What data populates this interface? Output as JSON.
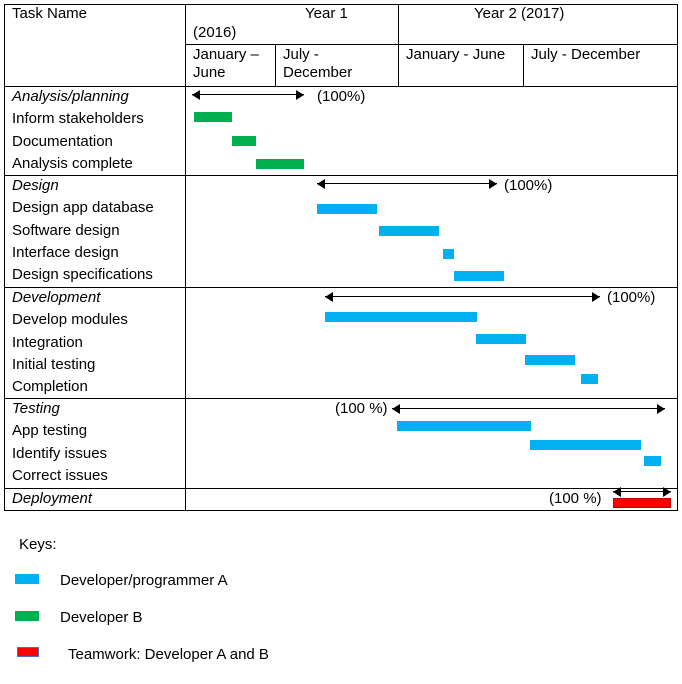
{
  "header": {
    "task_name": "Task Name",
    "year1": "Year 1",
    "year1_sub": "(2016)",
    "year2": "Year 2 (2017)",
    "y1_h1": "January –",
    "y1_h1b": "June",
    "y1_h2": "July -",
    "y1_h2b": "December",
    "y2_h1": "January - June",
    "y2_h2": "July - December"
  },
  "groups": [
    {
      "title": "Analysis/planning",
      "percent": "(100%)",
      "tasks": [
        "Inform stakeholders",
        "Documentation",
        "Analysis complete"
      ]
    },
    {
      "title": "Design",
      "percent": "(100%)",
      "tasks": [
        "Design app database",
        "Software design",
        "Interface design",
        "Design specifications"
      ]
    },
    {
      "title": "Development",
      "percent": "(100%)",
      "tasks": [
        "Develop modules",
        "Integration",
        "Initial testing",
        "Completion"
      ]
    },
    {
      "title": "Testing",
      "percent": "(100 %)",
      "tasks": [
        "App testing",
        "Identify issues",
        "Correct issues"
      ]
    },
    {
      "title": "Deployment",
      "percent": "(100 %)",
      "tasks": []
    }
  ],
  "keys": {
    "title": "Keys:",
    "items": [
      {
        "label": "Developer/programmer A",
        "color": "#00B0F0"
      },
      {
        "label": "Developer B",
        "color": "#00B050"
      },
      {
        "label": "Teamwork: Developer A and B",
        "color": "#FF0000"
      }
    ]
  },
  "colors": {
    "developer_a": "#00B0F0",
    "developer_b": "#00B050",
    "teamwork": "#FF0000"
  }
}
